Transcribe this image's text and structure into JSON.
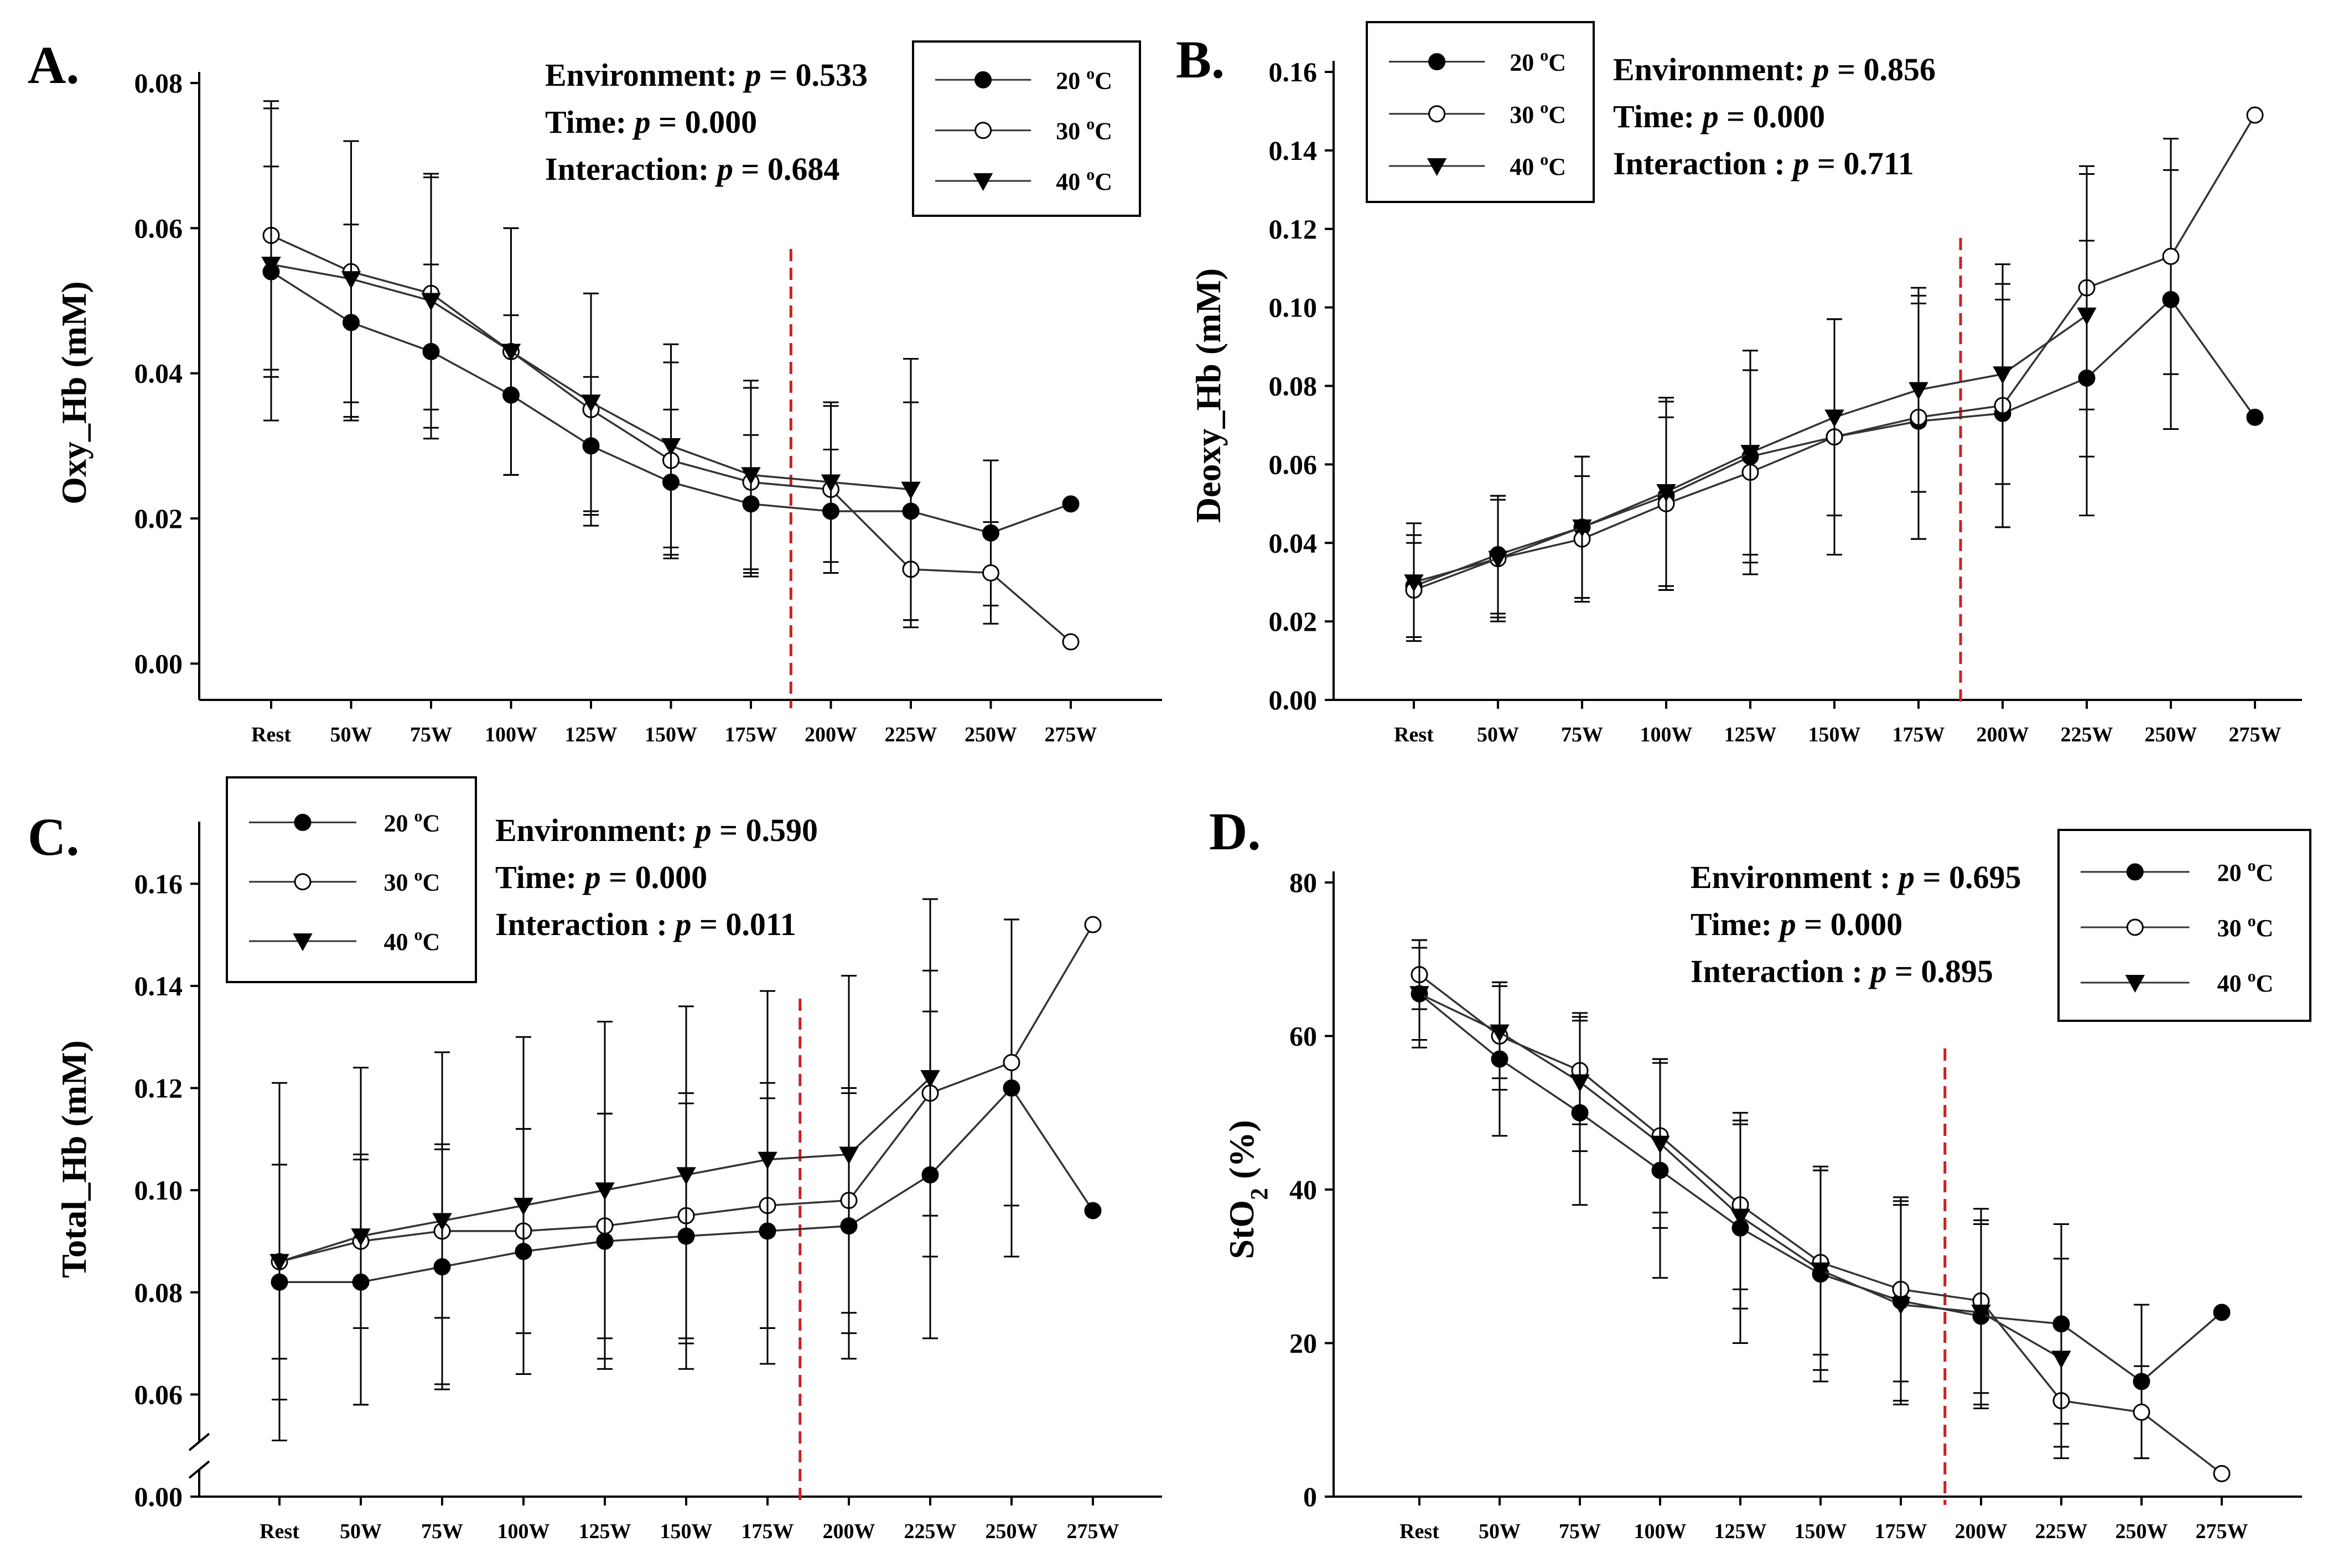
{
  "legend_unit_sup": "o",
  "chart_data": [
    {
      "type": "line",
      "panel_label": "A.",
      "ylabel": "Oxy_Hb (mM)",
      "categories": [
        "Rest",
        "50W",
        "75W",
        "100W",
        "125W",
        "150W",
        "175W",
        "200W",
        "225W",
        "250W",
        "275W"
      ],
      "ylim": [
        -0.005,
        0.08
      ],
      "yticks": [
        "0.00",
        "0.02",
        "0.04",
        "0.06",
        "0.08"
      ],
      "ytick_values": [
        0,
        0.02,
        0.04,
        0.06,
        0.08
      ],
      "axis_break": false,
      "divider_index": 6.5,
      "stats": [
        {
          "label": "Environment: ",
          "p": "p",
          "value": " = 0.533"
        },
        {
          "label": "Time: ",
          "p": "p",
          "value": " = 0.000"
        },
        {
          "label": "Interaction: ",
          "p": "p",
          "value": " = 0.684"
        }
      ],
      "series": [
        {
          "name": "20 ",
          "unit": "C",
          "marker": "filled-circle",
          "values": [
            0.054,
            0.047,
            0.043,
            0.037,
            0.03,
            0.025,
            0.022,
            0.021,
            0.021,
            0.018,
            0.022
          ],
          "err": [
            0.0145,
            0.0135,
            0.012,
            0.011,
            0.0095,
            0.01,
            0.0095,
            0.0085,
            0.015,
            0.01,
            0
          ]
        },
        {
          "name": "30 ",
          "unit": "C",
          "marker": "open-circle",
          "values": [
            0.059,
            0.054,
            0.051,
            0.043,
            0.035,
            0.028,
            0.025,
            0.024,
            0.013,
            0.0125,
            0.003
          ],
          "err": [
            0.0185,
            0.018,
            0.016,
            0.017,
            0.016,
            0.0135,
            0.013,
            0.0115,
            0.008,
            0.007,
            0
          ]
        },
        {
          "name": "40 ",
          "unit": "C",
          "marker": "triangle-down",
          "values": [
            0.055,
            0.053,
            0.05,
            0.043,
            0.036,
            0.03,
            0.026,
            0.025,
            0.024,
            null,
            null
          ],
          "err": [
            0.0215,
            0.019,
            0.0175,
            0.017,
            0.015,
            0.014,
            0.013,
            0.011,
            0.018,
            0,
            0
          ]
        }
      ]
    },
    {
      "type": "line",
      "panel_label": "B.",
      "ylabel": "Deoxy_Hb (mM)",
      "categories": [
        "Rest",
        "50W",
        "75W",
        "100W",
        "125W",
        "150W",
        "175W",
        "200W",
        "225W",
        "250W",
        "275W"
      ],
      "ylim": [
        0,
        0.16
      ],
      "yticks": [
        "0.00",
        "0.02",
        "0.04",
        "0.06",
        "0.08",
        "0.10",
        "0.12",
        "0.14",
        "0.16"
      ],
      "ytick_values": [
        0,
        0.02,
        0.04,
        0.06,
        0.08,
        0.1,
        0.12,
        0.14,
        0.16
      ],
      "axis_break": false,
      "divider_index": 6.5,
      "stats": [
        {
          "label": "Environment: ",
          "p": "p",
          "value": " = 0.856"
        },
        {
          "label": "Time: ",
          "p": "p",
          "value": " = 0.000"
        },
        {
          "label": "Interaction : ",
          "p": "p",
          "value": " = 0.711"
        }
      ],
      "series": [
        {
          "name": "20 ",
          "unit": "C",
          "marker": "filled-circle",
          "values": [
            0.029,
            0.037,
            0.044,
            0.052,
            0.062,
            0.067,
            0.071,
            0.073,
            0.082,
            0.102,
            0.072
          ],
          "err": [
            0.013,
            0.015,
            0.018,
            0.024,
            0.027,
            0.03,
            0.03,
            0.029,
            0.035,
            0.033,
            0
          ]
        },
        {
          "name": "30 ",
          "unit": "C",
          "marker": "open-circle",
          "values": [
            0.028,
            0.036,
            0.041,
            0.05,
            0.058,
            0.067,
            0.072,
            0.075,
            0.105,
            0.113,
            0.149
          ],
          "err": [
            0.012,
            0.015,
            0.016,
            0.022,
            0.026,
            0.03,
            0.031,
            0.031,
            0.031,
            0.03,
            0
          ]
        },
        {
          "name": "40 ",
          "unit": "C",
          "marker": "triangle-down",
          "values": [
            0.03,
            0.036,
            0.044,
            0.053,
            0.063,
            0.072,
            0.079,
            0.083,
            0.098,
            null,
            null
          ],
          "err": [
            0.015,
            0.016,
            0.018,
            0.024,
            0.026,
            0.025,
            0.026,
            0.028,
            0.036,
            0,
            0
          ]
        }
      ]
    },
    {
      "type": "line",
      "panel_label": "C.",
      "ylabel": "Total_Hb (mM)",
      "categories": [
        "Rest",
        "50W",
        "75W",
        "100W",
        "125W",
        "150W",
        "175W",
        "200W",
        "225W",
        "250W",
        "275W"
      ],
      "ylim": [
        0.04,
        0.17
      ],
      "yticks": [
        "0.00",
        "0.06",
        "0.08",
        "0.10",
        "0.12",
        "0.14",
        "0.16"
      ],
      "ytick_values": [
        0.04,
        0.06,
        0.08,
        0.1,
        0.12,
        0.14,
        0.16
      ],
      "axis_break": true,
      "divider_index": 6.4,
      "stats": [
        {
          "label": "Environment: ",
          "p": "p",
          "value": " = 0.590"
        },
        {
          "label": "Time: ",
          "p": "p",
          "value": " = 0.000"
        },
        {
          "label": "Interaction : ",
          "p": "p",
          "value": " = 0.011"
        }
      ],
      "series": [
        {
          "name": "20 ",
          "unit": "C",
          "marker": "filled-circle",
          "values": [
            0.082,
            0.082,
            0.085,
            0.088,
            0.09,
            0.091,
            0.092,
            0.093,
            0.103,
            0.12,
            0.096
          ],
          "err": [
            0.023,
            0.024,
            0.023,
            0.024,
            0.025,
            0.026,
            0.026,
            0.026,
            0.032,
            0.033,
            0
          ]
        },
        {
          "name": "30 ",
          "unit": "C",
          "marker": "open-circle",
          "values": [
            0.086,
            0.09,
            0.092,
            0.092,
            0.093,
            0.095,
            0.097,
            0.098,
            0.119,
            0.125,
            0.152
          ],
          "err": [
            0.019,
            0.017,
            0.017,
            0.02,
            0.022,
            0.024,
            0.024,
            0.022,
            0.024,
            0.028,
            0
          ]
        },
        {
          "name": "40 ",
          "unit": "C",
          "marker": "triangle-down",
          "values": [
            0.086,
            0.091,
            0.094,
            0.097,
            0.1,
            0.103,
            0.106,
            0.107,
            0.122,
            null,
            null
          ],
          "err": [
            0.035,
            0.033,
            0.033,
            0.033,
            0.033,
            0.033,
            0.033,
            0.035,
            0.035,
            0,
            0
          ]
        }
      ]
    },
    {
      "type": "line",
      "panel_label": "D.",
      "ylabel": "StO",
      "ylabel_sub": "2",
      "ylabel_unit": " (%)",
      "categories": [
        "Rest",
        "50W",
        "75W",
        "100W",
        "125W",
        "150W",
        "175W",
        "200W",
        "225W",
        "250W",
        "275W"
      ],
      "ylim": [
        0,
        80
      ],
      "yticks": [
        "0",
        "20",
        "40",
        "60",
        "80"
      ],
      "ytick_values": [
        0,
        20,
        40,
        60,
        80
      ],
      "axis_break": false,
      "divider_index": 6.55,
      "stats": [
        {
          "label": "Environment : ",
          "p": "p",
          "value": " = 0.695"
        },
        {
          "label": "Time: ",
          "p": "p",
          "value": " = 0.000"
        },
        {
          "label": "Interaction : ",
          "p": "p",
          "value": " = 0.895"
        }
      ],
      "series": [
        {
          "name": "20 ",
          "unit": "C",
          "marker": "filled-circle",
          "values": [
            65.5,
            57.0,
            50.0,
            42.5,
            35.0,
            29.0,
            25.5,
            23.5,
            22.5,
            15.0,
            24.0
          ],
          "err": [
            6,
            10,
            12,
            14,
            15,
            14,
            13,
            12,
            13,
            10,
            0
          ]
        },
        {
          "name": "30 ",
          "unit": "C",
          "marker": "open-circle",
          "values": [
            68.0,
            60.0,
            55.5,
            47.0,
            38.0,
            30.5,
            27.0,
            25.5,
            12.5,
            11.0,
            3.0
          ],
          "err": [
            4.5,
            7,
            7,
            10,
            11,
            12,
            12,
            12,
            6,
            6,
            0
          ]
        },
        {
          "name": "40 ",
          "unit": "C",
          "marker": "triangle-down",
          "values": [
            65.5,
            60.5,
            54.0,
            46.0,
            36.5,
            29.5,
            25.0,
            24.0,
            18.0,
            null,
            null
          ],
          "err": [
            7,
            6,
            9,
            11,
            12,
            13,
            13,
            12,
            13,
            0,
            0
          ]
        }
      ]
    }
  ]
}
